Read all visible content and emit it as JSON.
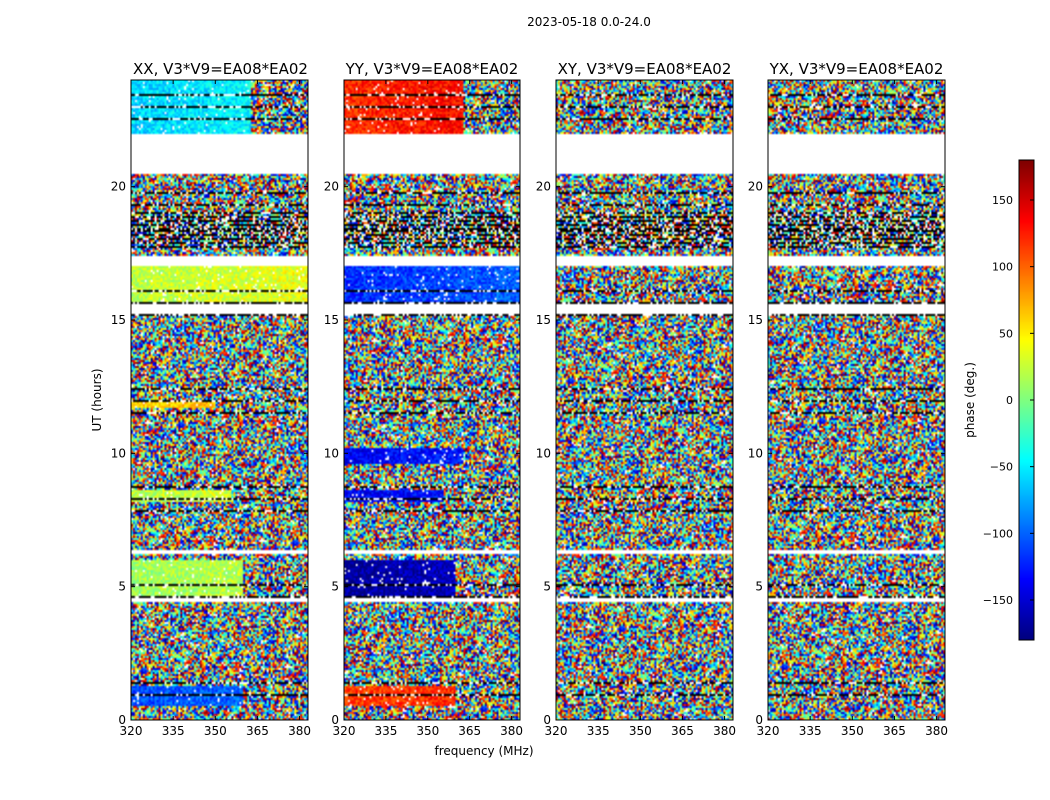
{
  "chart_data": {
    "type": "heatmap",
    "suptitle": "2023-05-18 0.0-24.0",
    "xlabel": "frequency (MHz)",
    "ylabel": "UT (hours)",
    "xlim": [
      320,
      383
    ],
    "ylim": [
      0,
      24
    ],
    "xticks": [
      "320",
      "335",
      "350",
      "365",
      "380"
    ],
    "yticks": [
      "0",
      "5",
      "10",
      "15",
      "20"
    ],
    "colorbar": {
      "label": "phase (deg.)",
      "vmin": -180,
      "vmax": 180,
      "ticks": [
        "−150",
        "−100",
        "−50",
        "0",
        "50",
        "100",
        "150"
      ],
      "colormap": "jet"
    },
    "panels": [
      {
        "title": "XX, V3*V9=EA08*EA02",
        "pol": "XX"
      },
      {
        "title": "YY, V3*V9=EA08*EA02",
        "pol": "YY"
      },
      {
        "title": "XY, V3*V9=EA08*EA02",
        "pol": "XY"
      },
      {
        "title": "YX, V3*V9=EA08*EA02",
        "pol": "YX"
      }
    ],
    "blank_ut_ranges": [
      [
        20.5,
        22.0
      ],
      [
        15.2,
        15.6
      ],
      [
        17.0,
        17.4
      ],
      [
        6.2,
        6.4
      ],
      [
        4.4,
        4.6
      ]
    ],
    "dense_flagged_ut_range": [
      17.6,
      19.2
    ],
    "coherent_regions": [
      {
        "panel": "XX",
        "ut": [
          0.5,
          1.3
        ],
        "freq": [
          320,
          360
        ],
        "phase": -110
      },
      {
        "panel": "XX",
        "ut": [
          4.6,
          6.0
        ],
        "freq": [
          320,
          360
        ],
        "phase": 10
      },
      {
        "panel": "XX",
        "ut": [
          8.2,
          8.6
        ],
        "freq": [
          320,
          356
        ],
        "phase": 20
      },
      {
        "panel": "XX",
        "ut": [
          11.7,
          12.0
        ],
        "freq": [
          320,
          350
        ],
        "phase": 60
      },
      {
        "panel": "XX",
        "ut": [
          15.6,
          17.0
        ],
        "freq": [
          320,
          383
        ],
        "phase": 20
      },
      {
        "panel": "XX",
        "ut": [
          22.0,
          24.0
        ],
        "freq": [
          320,
          363
        ],
        "phase": -60
      },
      {
        "panel": "YY",
        "ut": [
          0.5,
          1.3
        ],
        "freq": [
          320,
          360
        ],
        "phase": 110
      },
      {
        "panel": "YY",
        "ut": [
          4.6,
          6.0
        ],
        "freq": [
          320,
          360
        ],
        "phase": -170
      },
      {
        "panel": "YY",
        "ut": [
          8.2,
          8.6
        ],
        "freq": [
          320,
          356
        ],
        "phase": -140
      },
      {
        "panel": "YY",
        "ut": [
          9.6,
          10.2
        ],
        "freq": [
          320,
          363
        ],
        "phase": -140
      },
      {
        "panel": "YY",
        "ut": [
          15.6,
          17.0
        ],
        "freq": [
          320,
          383
        ],
        "phase": -120
      },
      {
        "panel": "YY",
        "ut": [
          22.0,
          24.0
        ],
        "freq": [
          320,
          363
        ],
        "phase": 120
      }
    ]
  }
}
